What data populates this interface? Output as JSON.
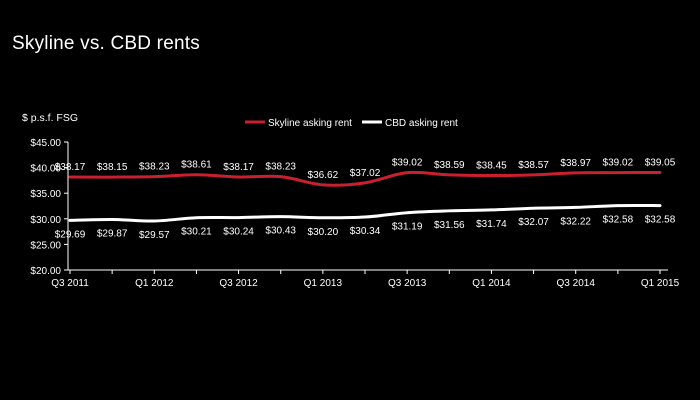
{
  "slide": {
    "title": "Skyline vs. CBD rents"
  },
  "chart_data": {
    "type": "line",
    "ylabel": "$ p.s.f. FSG",
    "ylim": [
      20,
      45
    ],
    "yticks": [
      "$20.00",
      "$25.00",
      "$30.00",
      "$35.00",
      "$40.00",
      "$45.00"
    ],
    "ytick_values": [
      20,
      25,
      30,
      35,
      40,
      45
    ],
    "x_tick_labels": [
      "Q3 2011",
      "Q1 2012",
      "Q3 2012",
      "Q1 2013",
      "Q3 2013",
      "Q1 2014",
      "Q3 2014",
      "Q1 2015"
    ],
    "legend_position": "top-center",
    "series": [
      {
        "name": "Skyline asking rent",
        "color": "#c8202f",
        "values": [
          38.17,
          38.15,
          38.23,
          38.61,
          38.17,
          38.23,
          36.62,
          37.02,
          39.02,
          38.59,
          38.45,
          38.57,
          38.97,
          39.02,
          39.05
        ],
        "labels": [
          "$38.17",
          "$38.15",
          "$38.23",
          "$38.61",
          "$38.17",
          "$38.23",
          "$36.62",
          "$37.02",
          "$39.02",
          "$38.59",
          "$38.45",
          "$38.57",
          "$38.97",
          "$39.02",
          "$39.05"
        ]
      },
      {
        "name": "CBD asking rent",
        "color": "#ffffff",
        "values": [
          29.69,
          29.87,
          29.57,
          30.21,
          30.24,
          30.43,
          30.2,
          30.34,
          31.19,
          31.56,
          31.74,
          32.07,
          32.22,
          32.58,
          32.58
        ],
        "labels": [
          "$29.69",
          "$29.87",
          "$29.57",
          "$30.21",
          "$30.24",
          "$30.43",
          "$30.20",
          "$30.34",
          "$31.19",
          "$31.56",
          "$31.74",
          "$32.07",
          "$32.22",
          "$32.58",
          "$32.58"
        ]
      }
    ]
  }
}
